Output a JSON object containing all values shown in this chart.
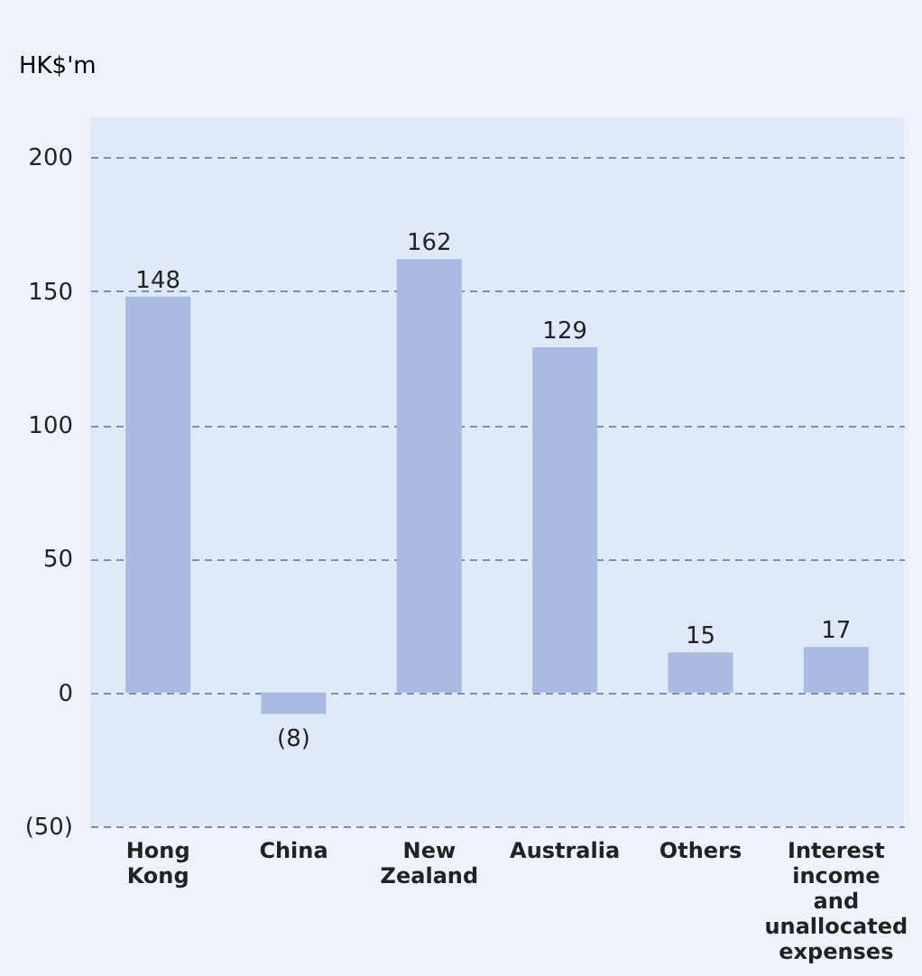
{
  "chart_data": {
    "type": "bar",
    "ylabel": "HK$'m",
    "categories": [
      "Hong Kong",
      "China",
      "New Zealand",
      "Australia",
      "Others",
      "Interest income and unallocated expenses"
    ],
    "values": [
      148,
      -8,
      162,
      129,
      15,
      17
    ],
    "value_labels": [
      "148",
      "(8)",
      "162",
      "129",
      "15",
      "17"
    ],
    "color": "#a9bbe0",
    "ylim": [
      -50,
      215
    ],
    "yticks": [
      200,
      150,
      100,
      50,
      0,
      {
        "value": -50,
        "label": "(50)"
      }
    ],
    "grid": "y",
    "line_style": "dashed"
  }
}
